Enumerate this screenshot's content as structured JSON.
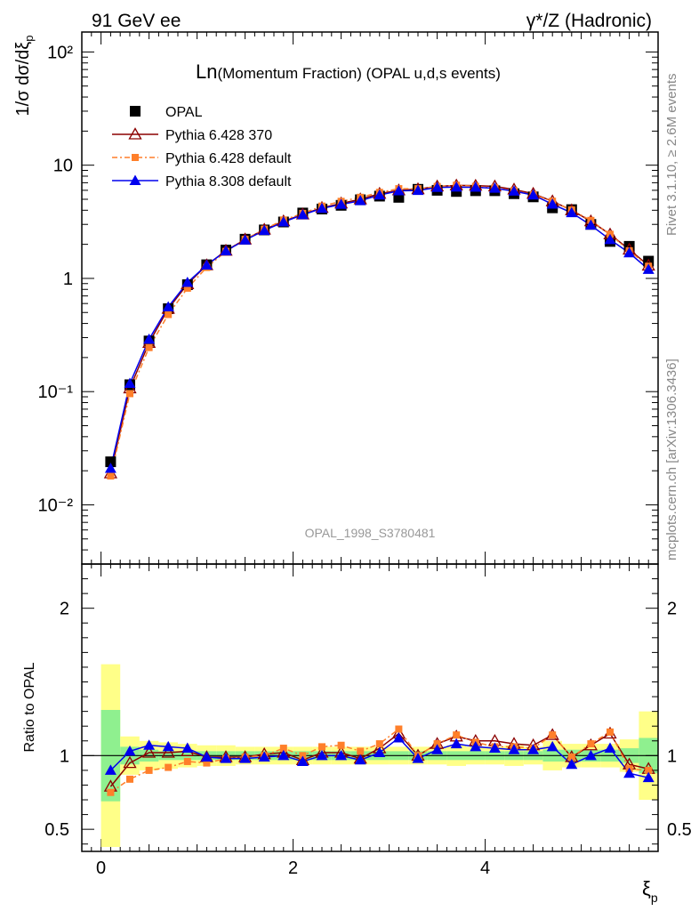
{
  "header": {
    "left": "91 GeV ee",
    "right_prefix": "γ*/Z",
    "right_suffix": " (Hadronic)"
  },
  "side_text": {
    "rivet": "Rivet 3.1.10, ≥ 2.6M events",
    "mcplots": "mcplots.cern.ch [arXiv:1306.3436]"
  },
  "chart_data": [
    {
      "type": "scatter",
      "title_prefix": "Ln",
      "title": "(Momentum Fraction) (OPAL u,d,s events)",
      "ylabel": "1/σ dσ/dξp",
      "ylabel_main": "1/σ dσ/dξ",
      "ylabel_sub": "p",
      "yscale": "log",
      "ylim": [
        0.003,
        150
      ],
      "xlim": [
        -0.2,
        5.8
      ],
      "yticks": [
        "10⁻²",
        "10⁻¹",
        "1",
        "10",
        "10²"
      ],
      "analysis": "OPAL_1998_S3780481",
      "legend_position": "top-left",
      "x": [
        0.1,
        0.3,
        0.5,
        0.7,
        0.9,
        1.1,
        1.3,
        1.5,
        1.7,
        1.9,
        2.1,
        2.3,
        2.5,
        2.7,
        2.9,
        3.1,
        3.3,
        3.5,
        3.7,
        3.9,
        4.1,
        4.3,
        4.5,
        4.7,
        4.9,
        5.1,
        5.3,
        5.5,
        5.7
      ],
      "series": [
        {
          "name": "OPAL",
          "color": "#000000",
          "marker": "square",
          "values": [
            0.024,
            0.115,
            0.28,
            0.54,
            0.88,
            1.32,
            1.78,
            2.22,
            2.68,
            3.15,
            3.78,
            4.1,
            4.42,
            4.95,
            5.33,
            5.2,
            6.12,
            6.0,
            5.86,
            5.95,
            5.95,
            5.6,
            5.25,
            4.2,
            4.05,
            3.0,
            2.12,
            1.92,
            1.42
          ]
        },
        {
          "name": "Pythia 6.428 370",
          "color": "#8b0000",
          "marker": "triangle-open",
          "values": [
            0.019,
            0.107,
            0.27,
            0.54,
            0.89,
            1.31,
            1.76,
            2.21,
            2.7,
            3.2,
            3.68,
            4.2,
            4.6,
            5.0,
            5.6,
            6.0,
            6.15,
            6.5,
            6.63,
            6.6,
            6.5,
            6.1,
            5.6,
            4.8,
            4.0,
            3.2,
            2.45,
            1.8,
            1.3
          ]
        },
        {
          "name": "Pythia 6.428 default",
          "color": "#ff7f2a",
          "marker": "square-small",
          "values": [
            0.018,
            0.096,
            0.245,
            0.48,
            0.82,
            1.25,
            1.73,
            2.21,
            2.72,
            3.28,
            3.75,
            4.35,
            4.79,
            5.2,
            5.75,
            6.2,
            6.2,
            6.48,
            6.65,
            6.5,
            6.3,
            5.95,
            5.5,
            4.8,
            4.02,
            3.25,
            2.45,
            1.75,
            1.28
          ]
        },
        {
          "name": "Pythia 8.308 default",
          "color": "#0000ee",
          "marker": "triangle",
          "values": [
            0.021,
            0.118,
            0.29,
            0.56,
            0.92,
            1.31,
            1.75,
            2.18,
            2.65,
            3.15,
            3.65,
            4.15,
            4.5,
            4.85,
            5.45,
            5.93,
            5.98,
            6.35,
            6.4,
            6.38,
            6.25,
            5.9,
            5.45,
            4.52,
            3.8,
            2.95,
            2.2,
            1.68,
            1.2
          ]
        }
      ]
    },
    {
      "type": "line",
      "ylabel": "Ratio to OPAL",
      "xlabel": "ξp",
      "xlabel_main": "ξ",
      "xlabel_sub": "p",
      "xlim": [
        -0.2,
        5.8
      ],
      "ylim": [
        0.35,
        2.3
      ],
      "xticks": [
        0,
        2,
        4
      ],
      "yticks": [
        0.5,
        1,
        2
      ],
      "x": [
        0.1,
        0.3,
        0.5,
        0.7,
        0.9,
        1.1,
        1.3,
        1.5,
        1.7,
        1.9,
        2.1,
        2.3,
        2.5,
        2.7,
        2.9,
        3.1,
        3.3,
        3.5,
        3.7,
        3.9,
        4.1,
        4.3,
        4.5,
        4.7,
        4.9,
        5.1,
        5.3,
        5.5,
        5.7
      ],
      "band_colors": {
        "inner": "#8ff08f",
        "outer": "#ffff88"
      },
      "band_inner": [
        0.31,
        0.06,
        0.04,
        0.03,
        0.03,
        0.03,
        0.03,
        0.03,
        0.03,
        0.03,
        0.03,
        0.03,
        0.03,
        0.03,
        0.03,
        0.03,
        0.03,
        0.03,
        0.03,
        0.03,
        0.03,
        0.03,
        0.03,
        0.04,
        0.04,
        0.04,
        0.04,
        0.05,
        0.12
      ],
      "band_outer": [
        0.62,
        0.13,
        0.1,
        0.09,
        0.08,
        0.07,
        0.07,
        0.06,
        0.06,
        0.06,
        0.06,
        0.06,
        0.06,
        0.06,
        0.06,
        0.06,
        0.06,
        0.06,
        0.07,
        0.06,
        0.06,
        0.07,
        0.06,
        0.1,
        0.08,
        0.08,
        0.08,
        0.11,
        0.3
      ],
      "series": [
        {
          "name": "Pythia 6.428 370",
          "color": "#8b0000",
          "marker": "triangle-open",
          "values": [
            0.79,
            0.95,
            1.02,
            1.02,
            1.03,
            0.99,
            0.99,
            0.99,
            1.01,
            1.02,
            0.97,
            1.02,
            1.02,
            0.98,
            1.05,
            1.15,
            1.0,
            1.08,
            1.13,
            1.1,
            1.1,
            1.08,
            1.07,
            1.14,
            0.99,
            1.07,
            1.15,
            0.94,
            0.91
          ]
        },
        {
          "name": "Pythia 6.428 default",
          "color": "#ff7f2a",
          "marker": "square-small",
          "values": [
            0.75,
            0.84,
            0.9,
            0.92,
            0.96,
            0.95,
            0.98,
            0.99,
            1.0,
            1.05,
            1.0,
            1.06,
            1.07,
            1.03,
            1.08,
            1.18,
            1.0,
            1.08,
            1.14,
            1.09,
            1.06,
            1.06,
            1.05,
            1.14,
            0.99,
            1.08,
            1.16,
            0.91,
            0.9
          ]
        },
        {
          "name": "Pythia 8.308 default",
          "color": "#0000ee",
          "marker": "triangle",
          "values": [
            0.9,
            1.03,
            1.07,
            1.06,
            1.05,
            0.99,
            0.98,
            0.98,
            0.99,
            1.0,
            0.96,
            1.0,
            1.0,
            0.97,
            1.02,
            1.12,
            0.98,
            1.04,
            1.08,
            1.06,
            1.05,
            1.04,
            1.04,
            1.06,
            0.94,
            1.0,
            1.05,
            0.88,
            0.85
          ]
        }
      ]
    }
  ]
}
